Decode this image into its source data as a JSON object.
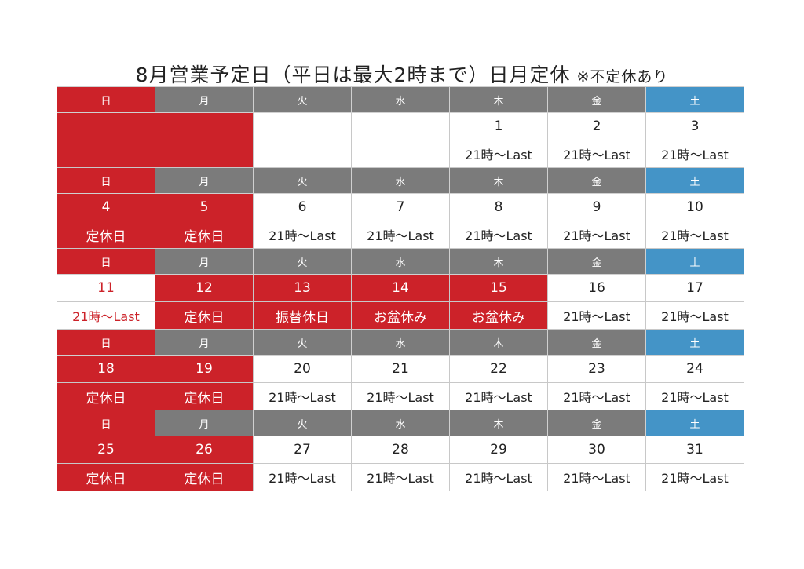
{
  "title": {
    "main": "8月営業予定日（平日は最大2時まで）日月定休",
    "note": "※不定休あり"
  },
  "colors": {
    "holiday_red": "#cc2229",
    "header_gray": "#7b7b7b",
    "saturday_blue": "#4494c7"
  },
  "weekday_headers": [
    "日",
    "月",
    "火",
    "水",
    "木",
    "金",
    "土"
  ],
  "weeks": [
    {
      "days": [
        "",
        "",
        "",
        "",
        "1",
        "2",
        "3"
      ],
      "hours": [
        "",
        "",
        "",
        "",
        "21時〜Last",
        "21時〜Last",
        "21時〜Last"
      ],
      "day_style": [
        "red",
        "red",
        "white",
        "white",
        "white",
        "white",
        "white"
      ],
      "hours_style": [
        "red",
        "red",
        "white",
        "white",
        "white",
        "white",
        "white"
      ]
    },
    {
      "days": [
        "4",
        "5",
        "6",
        "7",
        "8",
        "9",
        "10"
      ],
      "hours": [
        "定休日",
        "定休日",
        "21時〜Last",
        "21時〜Last",
        "21時〜Last",
        "21時〜Last",
        "21時〜Last"
      ],
      "day_style": [
        "red",
        "red",
        "white",
        "white",
        "white",
        "white",
        "white"
      ],
      "hours_style": [
        "red",
        "red",
        "white",
        "white",
        "white",
        "white",
        "white"
      ]
    },
    {
      "days": [
        "11",
        "12",
        "13",
        "14",
        "15",
        "16",
        "17"
      ],
      "hours": [
        "21時〜Last",
        "定休日",
        "振替休日",
        "お盆休み",
        "お盆休み",
        "21時〜Last",
        "21時〜Last"
      ],
      "day_style": [
        "redtext",
        "red",
        "red",
        "red",
        "red",
        "white",
        "white"
      ],
      "hours_style": [
        "redtext",
        "red",
        "red",
        "red",
        "red",
        "white",
        "white"
      ]
    },
    {
      "days": [
        "18",
        "19",
        "20",
        "21",
        "22",
        "23",
        "24"
      ],
      "hours": [
        "定休日",
        "定休日",
        "21時〜Last",
        "21時〜Last",
        "21時〜Last",
        "21時〜Last",
        "21時〜Last"
      ],
      "day_style": [
        "red",
        "red",
        "white",
        "white",
        "white",
        "white",
        "white"
      ],
      "hours_style": [
        "red",
        "red",
        "white",
        "white",
        "white",
        "white",
        "white"
      ]
    },
    {
      "days": [
        "25",
        "26",
        "27",
        "28",
        "29",
        "30",
        "31"
      ],
      "hours": [
        "定休日",
        "定休日",
        "21時〜Last",
        "21時〜Last",
        "21時〜Last",
        "21時〜Last",
        "21時〜Last"
      ],
      "day_style": [
        "red",
        "red",
        "white",
        "white",
        "white",
        "white",
        "white"
      ],
      "hours_style": [
        "red",
        "red",
        "white",
        "white",
        "white",
        "white",
        "white"
      ]
    }
  ]
}
